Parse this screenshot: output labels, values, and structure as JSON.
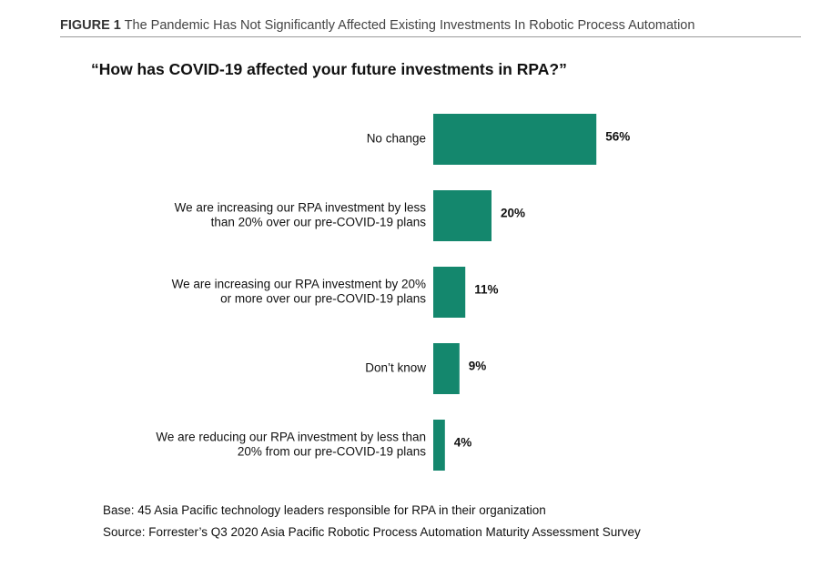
{
  "figure": {
    "label": "FIGURE 1",
    "title": "The Pandemic Has Not Significantly Affected Existing Investments In Robotic Process Automation"
  },
  "chart_data": {
    "type": "bar",
    "orientation": "horizontal",
    "title": "“How has COVID-19 affected your future investments in RPA?”",
    "categories": [
      [
        "No change"
      ],
      [
        "We are increasing our RPA investment by less",
        "than 20% over our pre-COVID-19 plans"
      ],
      [
        "We are increasing our RPA investment by 20%",
        "or more over our pre-COVID-19 plans"
      ],
      [
        "Don’t know"
      ],
      [
        "We are reducing our RPA investment by less than",
        "20% from our pre-COVID-19 plans"
      ]
    ],
    "values": [
      56,
      20,
      11,
      9,
      4
    ],
    "value_labels": [
      "56%",
      "20%",
      "11%",
      "9%",
      "4%"
    ],
    "xlim": [
      0,
      100
    ],
    "bar_color": "#14876d",
    "grid": false,
    "legend": "none"
  },
  "notes": {
    "base": "Base: 45 Asia Pacific technology leaders responsible for RPA in their organization",
    "source": "Source: Forrester’s Q3 2020 Asia Pacific Robotic Process Automation Maturity Assessment Survey"
  }
}
